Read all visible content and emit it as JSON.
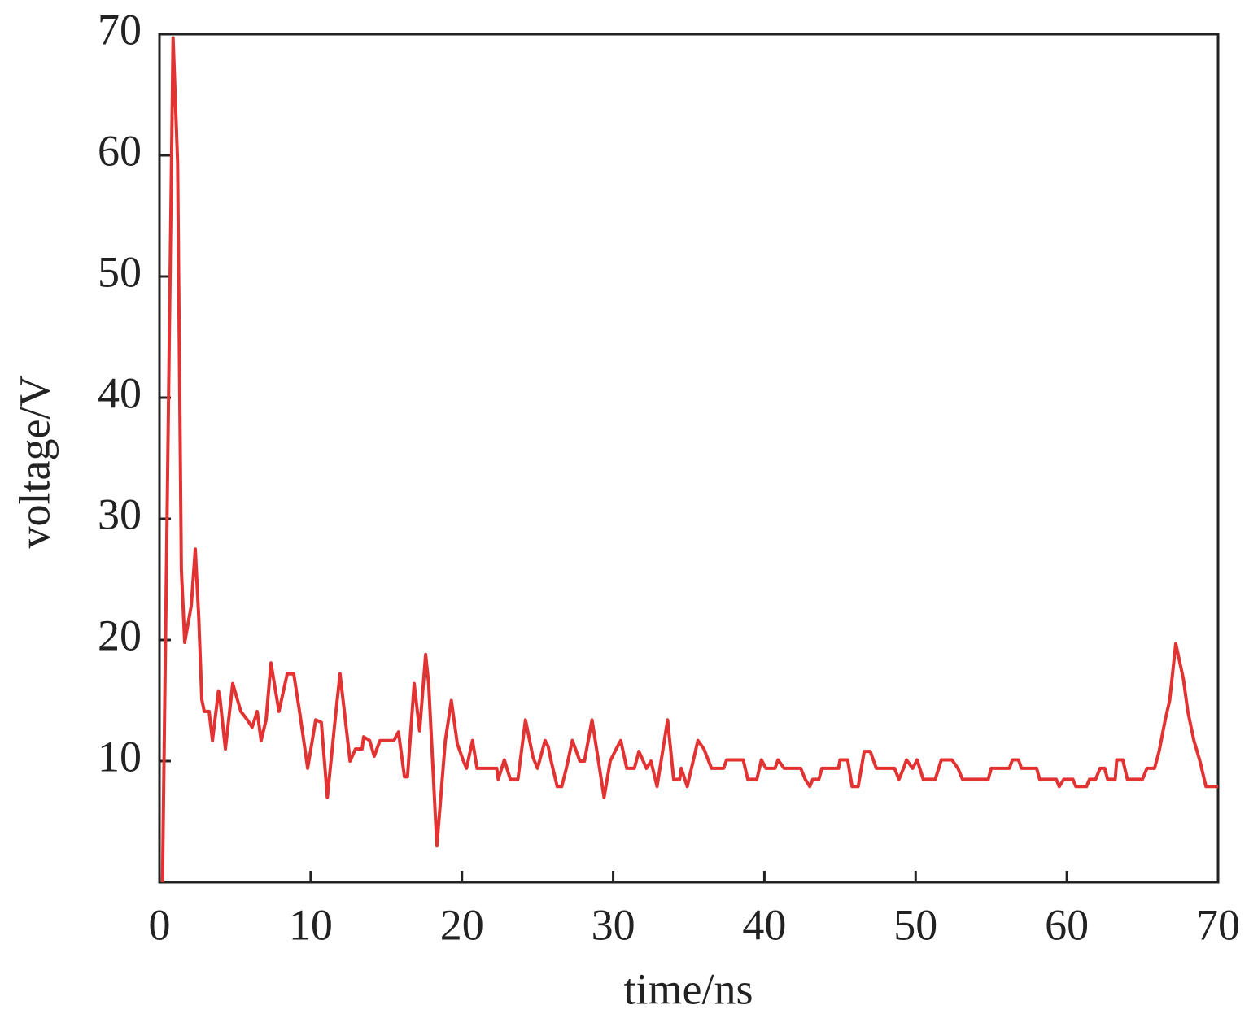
{
  "chart_data": {
    "type": "line",
    "x_label": "time/ns",
    "y_label": "voltage/V",
    "xlim": [
      0,
      70
    ],
    "ylim": [
      0,
      70
    ],
    "xticks": [
      0,
      10,
      20,
      30,
      40,
      50,
      60,
      70
    ],
    "yticks": [
      10,
      20,
      30,
      40,
      50,
      60,
      70
    ],
    "grid": false,
    "series": [
      {
        "name": "voltage",
        "color": "#e23232",
        "x": [
          0.2,
          0.9,
          1.2,
          1.45,
          1.67,
          2.1,
          2.37,
          2.6,
          2.8,
          2.96,
          3.28,
          3.5,
          3.9,
          3.98,
          4.36,
          4.84,
          5.38,
          5.81,
          6.13,
          6.46,
          6.72,
          7.05,
          7.37,
          7.9,
          8.45,
          8.88,
          9.3,
          9.8,
          10.33,
          10.7,
          11.1,
          11.67,
          11.94,
          12.2,
          12.6,
          12.96,
          13.4,
          13.5,
          13.9,
          14.2,
          14.58,
          15.5,
          15.8,
          16.2,
          16.4,
          16.84,
          17.2,
          17.6,
          17.8,
          18.34,
          18.9,
          19.3,
          19.7,
          20.1,
          20.3,
          20.7,
          21.0,
          22.3,
          22.4,
          22.8,
          23.2,
          23.7,
          24.2,
          24.7,
          25.0,
          25.5,
          25.7,
          25.9,
          26.3,
          26.6,
          26.9,
          27.3,
          27.8,
          28.1,
          28.6,
          29.4,
          29.8,
          30.2,
          30.5,
          30.9,
          31.4,
          31.7,
          32.2,
          32.5,
          32.9,
          33.6,
          34.0,
          34.4,
          34.5,
          34.9,
          35.6,
          36.0,
          36.5,
          37.3,
          37.5,
          38.6,
          38.9,
          39.5,
          39.8,
          40.1,
          40.7,
          40.9,
          41.3,
          42.4,
          42.7,
          43.0,
          43.2,
          43.6,
          43.8,
          44.9,
          45.0,
          45.5,
          45.8,
          46.2,
          46.6,
          47.0,
          47.4,
          48.6,
          48.9,
          49.2,
          49.4,
          49.8,
          50.1,
          50.5,
          51.3,
          51.7,
          52.4,
          52.8,
          53.1,
          54.8,
          55.0,
          56.2,
          56.4,
          56.8,
          57.0,
          58.0,
          58.2,
          59.3,
          59.5,
          59.8,
          60.4,
          60.6,
          61.3,
          61.5,
          61.9,
          62.2,
          62.5,
          62.7,
          63.2,
          63.3,
          63.7,
          64.0,
          65.0,
          65.3,
          65.8,
          66.1,
          66.5,
          66.8,
          67.2,
          67.7,
          68.0,
          68.4,
          68.8,
          69.2,
          70.0
        ],
        "values": [
          0,
          69.7,
          59.4,
          25.8,
          19.8,
          22.8,
          27.5,
          21.8,
          15.1,
          14.1,
          14.1,
          11.7,
          15.8,
          15.4,
          11,
          16.4,
          14.1,
          13.4,
          12.8,
          14.1,
          11.7,
          13.4,
          18.1,
          14.1,
          17.2,
          17.2,
          13.8,
          9.4,
          13.4,
          13.2,
          7,
          14.1,
          17.2,
          14.4,
          10,
          11,
          11,
          12,
          11.7,
          10.4,
          11.7,
          11.7,
          12.4,
          8.7,
          8.7,
          16.4,
          12.5,
          18.8,
          16.4,
          3,
          11.7,
          15,
          11.4,
          10,
          9.4,
          11.7,
          9.4,
          9.4,
          8.5,
          10.1,
          8.5,
          8.5,
          13.4,
          10.3,
          9.4,
          11.7,
          11.2,
          10,
          7.9,
          7.9,
          9.4,
          11.7,
          10,
          10,
          13.4,
          7,
          10,
          11,
          11.7,
          9.4,
          9.4,
          10.8,
          9.4,
          10,
          7.9,
          13.4,
          8.5,
          8.5,
          9.4,
          7.9,
          11.7,
          11,
          9.4,
          9.4,
          10.1,
          10.1,
          8.5,
          8.5,
          10.1,
          9.4,
          9.4,
          10.1,
          9.4,
          9.4,
          8.5,
          7.9,
          8.5,
          8.5,
          9.4,
          9.4,
          10.1,
          10.1,
          7.9,
          7.9,
          10.8,
          10.8,
          9.4,
          9.4,
          8.5,
          9.4,
          10.1,
          9.4,
          10.1,
          8.5,
          8.5,
          10.1,
          10.1,
          9.4,
          8.5,
          8.5,
          9.4,
          9.4,
          10.1,
          10.1,
          9.4,
          9.4,
          8.5,
          8.5,
          7.9,
          8.5,
          8.5,
          7.9,
          7.9,
          8.5,
          8.5,
          9.4,
          9.4,
          8.5,
          8.5,
          10.1,
          10.1,
          8.5,
          8.5,
          9.4,
          9.4,
          10.8,
          13.4,
          15,
          19.7,
          16.8,
          14.1,
          11.7,
          10,
          7.9,
          7.9
        ]
      }
    ]
  }
}
